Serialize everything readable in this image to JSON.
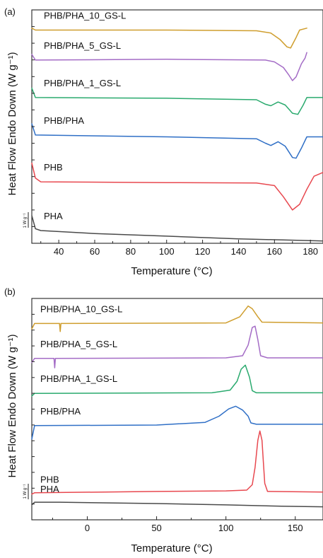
{
  "chart_data": [
    {
      "type": "line",
      "panel_label": "(a)",
      "xlabel": "Temperature (°C)",
      "ylabel": "Heat Flow Endo Down (W g⁻¹)",
      "xlim": [
        25,
        187
      ],
      "x_ticks": [
        40,
        60,
        80,
        100,
        120,
        140,
        160,
        180
      ],
      "scale_bar": {
        "label": "1 W g⁻¹",
        "value_W_per_g": 1
      },
      "y_units": "offset heat flow (scale bar = 1 W g⁻¹)",
      "series": [
        {
          "name": "PHA",
          "color": "#4a4a4a",
          "offset": 0,
          "points": [
            [
              25,
              0.4
            ],
            [
              27,
              0.05
            ],
            [
              30,
              0.0
            ],
            [
              60,
              -0.08
            ],
            [
              100,
              -0.15
            ],
            [
              140,
              -0.22
            ],
            [
              180,
              -0.27
            ],
            [
              187,
              -0.28
            ]
          ]
        },
        {
          "name": "PHB",
          "color": "#e8484f",
          "offset": 1.3,
          "points": [
            [
              25,
              0.5
            ],
            [
              27,
              0.1
            ],
            [
              30,
              0.0
            ],
            [
              100,
              -0.02
            ],
            [
              150,
              -0.03
            ],
            [
              160,
              -0.1
            ],
            [
              165,
              -0.4
            ],
            [
              170,
              -0.75
            ],
            [
              174,
              -0.6
            ],
            [
              178,
              -0.2
            ],
            [
              182,
              0.15
            ],
            [
              187,
              0.25
            ]
          ]
        },
        {
          "name": "PHB/PHA",
          "color": "#2f6fc6",
          "offset": 2.55,
          "points": [
            [
              25,
              0.3
            ],
            [
              27,
              0.0
            ],
            [
              100,
              -0.05
            ],
            [
              150,
              -0.1
            ],
            [
              155,
              -0.22
            ],
            [
              158,
              -0.28
            ],
            [
              162,
              -0.18
            ],
            [
              166,
              -0.3
            ],
            [
              170,
              -0.6
            ],
            [
              172,
              -0.62
            ],
            [
              175,
              -0.35
            ],
            [
              178,
              -0.05
            ],
            [
              187,
              -0.05
            ]
          ]
        },
        {
          "name": "PHB/PHA_1_GS-L",
          "color": "#2aaa6e",
          "offset": 3.55,
          "points": [
            [
              25,
              0.25
            ],
            [
              27,
              0.0
            ],
            [
              100,
              -0.02
            ],
            [
              150,
              -0.06
            ],
            [
              155,
              -0.18
            ],
            [
              158,
              -0.22
            ],
            [
              162,
              -0.12
            ],
            [
              166,
              -0.2
            ],
            [
              170,
              -0.42
            ],
            [
              173,
              -0.45
            ],
            [
              176,
              -0.2
            ],
            [
              178,
              0.0
            ],
            [
              187,
              0.0
            ]
          ]
        },
        {
          "name": "PHB/PHA_5_GS-L",
          "color": "#a46cc6",
          "offset": 4.55,
          "points": [
            [
              25,
              0.15
            ],
            [
              27,
              0.0
            ],
            [
              100,
              0.02
            ],
            [
              155,
              0.0
            ],
            [
              160,
              -0.05
            ],
            [
              165,
              -0.2
            ],
            [
              168,
              -0.4
            ],
            [
              170,
              -0.55
            ],
            [
              172,
              -0.45
            ],
            [
              175,
              -0.1
            ],
            [
              177,
              0.05
            ],
            [
              178,
              0.2
            ]
          ]
        },
        {
          "name": "PHB/PHA_10_GS-L",
          "color": "#cf9e2e",
          "offset": 5.35,
          "points": [
            [
              25,
              0.05
            ],
            [
              27,
              0.0
            ],
            [
              100,
              0.0
            ],
            [
              150,
              -0.02
            ],
            [
              158,
              -0.08
            ],
            [
              163,
              -0.25
            ],
            [
              167,
              -0.45
            ],
            [
              169,
              -0.48
            ],
            [
              172,
              -0.2
            ],
            [
              174,
              0.0
            ],
            [
              178,
              0.05
            ]
          ]
        }
      ]
    },
    {
      "type": "line",
      "panel_label": "(b)",
      "xlabel": "Temperature (°C)",
      "ylabel": "Heat Flow Endo Down (W g⁻¹)",
      "xlim": [
        -40,
        170
      ],
      "x_ticks": [
        0,
        50,
        100,
        150
      ],
      "scale_bar": {
        "label": "1 W g⁻¹",
        "value_W_per_g": 1
      },
      "y_units": "offset heat flow (scale bar = 1 W g⁻¹)",
      "series": [
        {
          "name": "PHA",
          "color": "#4a4a4a",
          "offset": 0,
          "points": [
            [
              -40,
              -0.05
            ],
            [
              -38,
              0.05
            ],
            [
              -20,
              0.05
            ],
            [
              50,
              0.0
            ],
            [
              100,
              -0.05
            ],
            [
              140,
              -0.1
            ],
            [
              170,
              -0.12
            ]
          ]
        },
        {
          "name": "PHB",
          "color": "#e8484f",
          "offset": 0.35,
          "points": [
            [
              -40,
              0.0
            ],
            [
              -38,
              0.05
            ],
            [
              50,
              0.1
            ],
            [
              100,
              0.12
            ],
            [
              115,
              0.15
            ],
            [
              119,
              0.35
            ],
            [
              121,
              1.0
            ],
            [
              123,
              2.0
            ],
            [
              124.5,
              2.35
            ],
            [
              126,
              2.0
            ],
            [
              127,
              1.2
            ],
            [
              128,
              0.4
            ],
            [
              130,
              0.1
            ],
            [
              170,
              0.08
            ]
          ]
        },
        {
          "name": "PHB/PHA",
          "color": "#2f6fc6",
          "offset": 2.9,
          "points": [
            [
              -40,
              -0.5
            ],
            [
              -38,
              0.0
            ],
            [
              50,
              0.02
            ],
            [
              85,
              0.12
            ],
            [
              95,
              0.35
            ],
            [
              102,
              0.62
            ],
            [
              107,
              0.72
            ],
            [
              112,
              0.58
            ],
            [
              116,
              0.35
            ],
            [
              118,
              0.1
            ],
            [
              122,
              0.05
            ],
            [
              170,
              0.05
            ]
          ]
        },
        {
          "name": "PHB/PHA_1_GS-L",
          "color": "#2aaa6e",
          "offset": 4.1,
          "points": [
            [
              -40,
              -0.1
            ],
            [
              -38,
              0.0
            ],
            [
              90,
              0.02
            ],
            [
              103,
              0.12
            ],
            [
              108,
              0.45
            ],
            [
              111,
              0.9
            ],
            [
              114,
              1.05
            ],
            [
              117,
              0.6
            ],
            [
              119,
              0.1
            ],
            [
              122,
              0.02
            ],
            [
              170,
              0.02
            ]
          ]
        },
        {
          "name": "PHB/PHA_5_GS-L",
          "color": "#a46cc6",
          "offset": 5.4,
          "points": [
            [
              -40,
              -0.15
            ],
            [
              -38,
              0.0
            ],
            [
              -24,
              0.0
            ],
            [
              -23.5,
              -0.35
            ],
            [
              -23,
              0.0
            ],
            [
              100,
              0.02
            ],
            [
              112,
              0.1
            ],
            [
              116,
              0.5
            ],
            [
              119,
              1.15
            ],
            [
              121,
              1.2
            ],
            [
              123,
              0.7
            ],
            [
              125,
              0.1
            ],
            [
              130,
              0.02
            ],
            [
              170,
              0.02
            ]
          ]
        },
        {
          "name": "PHB/PHA_10_GS-L",
          "color": "#cf9e2e",
          "offset": 6.7,
          "points": [
            [
              -40,
              -0.2
            ],
            [
              -38,
              0.0
            ],
            [
              -20,
              0.0
            ],
            [
              -19.5,
              -0.3
            ],
            [
              -19,
              0.0
            ],
            [
              100,
              0.02
            ],
            [
              110,
              0.25
            ],
            [
              116,
              0.65
            ],
            [
              119,
              0.55
            ],
            [
              123,
              0.25
            ],
            [
              126,
              0.05
            ],
            [
              170,
              0.02
            ]
          ]
        }
      ]
    }
  ]
}
